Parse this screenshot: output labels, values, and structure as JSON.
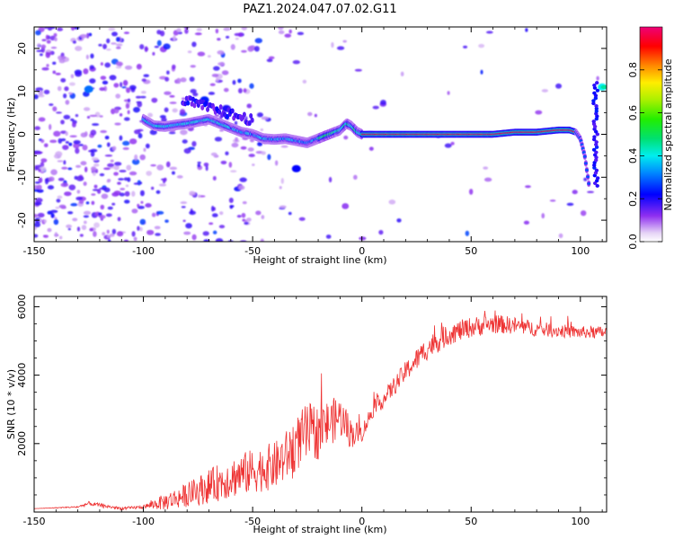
{
  "chart_data": [
    {
      "type": "heatmap",
      "title": "PAZ1.2024.047.07.02.G11",
      "xlabel": "Height of straight line (km)",
      "ylabel": "Frequency (Hz)",
      "xlim": [
        -150,
        112
      ],
      "ylim": [
        -25,
        25
      ],
      "xticks": [
        -150,
        -100,
        -50,
        0,
        50,
        100
      ],
      "yticks": [
        -20,
        -10,
        0,
        10,
        20
      ],
      "grid": false,
      "colorbar": {
        "label": "Normalized spectral amplitude",
        "range": [
          0,
          1
        ],
        "ticks": [
          "0.0",
          "0.2",
          "0.4",
          "0.6",
          "0.8"
        ],
        "colormap": "rainbow-on-white"
      },
      "ridge_x": [
        -100,
        -95,
        -90,
        -85,
        -80,
        -75,
        -70,
        -65,
        -60,
        -55,
        -50,
        -45,
        -40,
        -35,
        -30,
        -25,
        -20,
        -15,
        -10,
        -7,
        -5,
        -2,
        0,
        5,
        10,
        20,
        30,
        40,
        50,
        60,
        70,
        80,
        90,
        95,
        98,
        100,
        102,
        104
      ],
      "ridge_y": [
        3.5,
        2,
        1.8,
        2.2,
        2.5,
        3,
        3.5,
        2.5,
        1.5,
        0.5,
        0,
        -1,
        -1.2,
        -1,
        -1.5,
        -2,
        -1,
        0,
        1,
        2.5,
        2,
        0.5,
        0,
        0,
        0,
        0,
        0,
        0,
        0,
        0,
        0.5,
        0.5,
        1,
        1,
        0.5,
        -1,
        -5,
        -12
      ]
    },
    {
      "type": "line",
      "title": "",
      "xlabel": "Height of straight line (km)",
      "ylabel": "SNR (10 * v/v)",
      "xlim": [
        -150,
        112
      ],
      "ylim": [
        0,
        6300
      ],
      "xticks": [
        -150,
        -100,
        -50,
        0,
        50,
        100
      ],
      "yticks": [
        2000,
        4000,
        6000
      ],
      "grid": false,
      "series_color": "#ee3333",
      "trend_x": [
        -150,
        -130,
        -125,
        -110,
        -100,
        -90,
        -80,
        -70,
        -60,
        -50,
        -40,
        -35,
        -30,
        -25,
        -20,
        -15,
        -10,
        -5,
        0,
        5,
        10,
        20,
        30,
        40,
        50,
        60,
        70,
        80,
        90,
        100,
        112
      ],
      "trend_y": [
        100,
        150,
        250,
        100,
        150,
        300,
        500,
        750,
        1000,
        1200,
        1350,
        1600,
        2000,
        2300,
        2350,
        2600,
        2800,
        2300,
        2300,
        3000,
        3300,
        4100,
        4800,
        5200,
        5400,
        5500,
        5450,
        5350,
        5300,
        5250,
        5250
      ],
      "noise_y": [
        0,
        25,
        60,
        40,
        50,
        250,
        350,
        500,
        600,
        650,
        700,
        750,
        800,
        900,
        800,
        700,
        600,
        450,
        250,
        250,
        250,
        300,
        350,
        320,
        300,
        280,
        250,
        220,
        200,
        180,
        180
      ]
    }
  ]
}
